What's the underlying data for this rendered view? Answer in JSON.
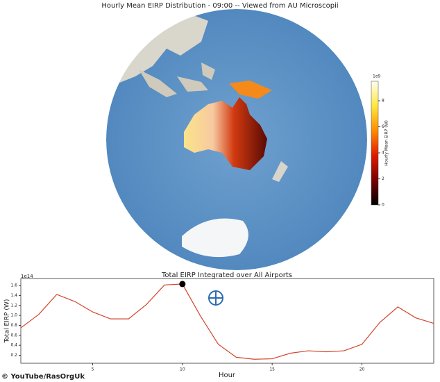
{
  "chart_data": [
    {
      "type": "map",
      "title": "Hourly Mean EIRP Distribution - 09:00 -- Viewed from AU Microscopii",
      "colorbar": {
        "label": "Hourly Mean EIRP (W)",
        "offset_label": "1e9",
        "lim": [
          0,
          9.5
        ],
        "ticks": [
          0,
          2,
          4,
          6,
          8
        ],
        "colormap": [
          "#000000",
          "#7a0000",
          "#e01a00",
          "#ff8c00",
          "#ffe640",
          "#fffff0"
        ]
      }
    },
    {
      "type": "line",
      "title": "Total EIRP Integrated over All Airports",
      "xlabel": "Hour",
      "ylabel": "Total EIRP (W)",
      "y_offset_label": "1e14",
      "x": [
        1,
        2,
        3,
        4,
        5,
        6,
        7,
        8,
        9,
        10,
        11,
        12,
        13,
        14,
        15,
        16,
        17,
        18,
        19,
        20,
        21,
        22,
        23,
        24
      ],
      "values": [
        0.75,
        1.02,
        1.42,
        1.28,
        1.07,
        0.93,
        0.93,
        1.22,
        1.61,
        1.63,
        0.99,
        0.42,
        0.16,
        0.12,
        0.13,
        0.24,
        0.29,
        0.27,
        0.29,
        0.42,
        0.86,
        1.17,
        0.95,
        0.84
      ],
      "color": "#d2452a",
      "marker_x": 10,
      "marker_value": 1.63,
      "marker_color": "#000000",
      "xlim": [
        1,
        24
      ],
      "ylim": [
        0.04,
        1.74
      ],
      "xticks": [
        5,
        10,
        15,
        20
      ],
      "yticks": [
        0.2,
        0.4,
        0.6,
        0.8,
        {
          "value": 1,
          "label": "1.0"
        },
        1.2,
        1.4,
        1.6
      ]
    }
  ],
  "watermark": "© YouTube/RasOrgUk"
}
